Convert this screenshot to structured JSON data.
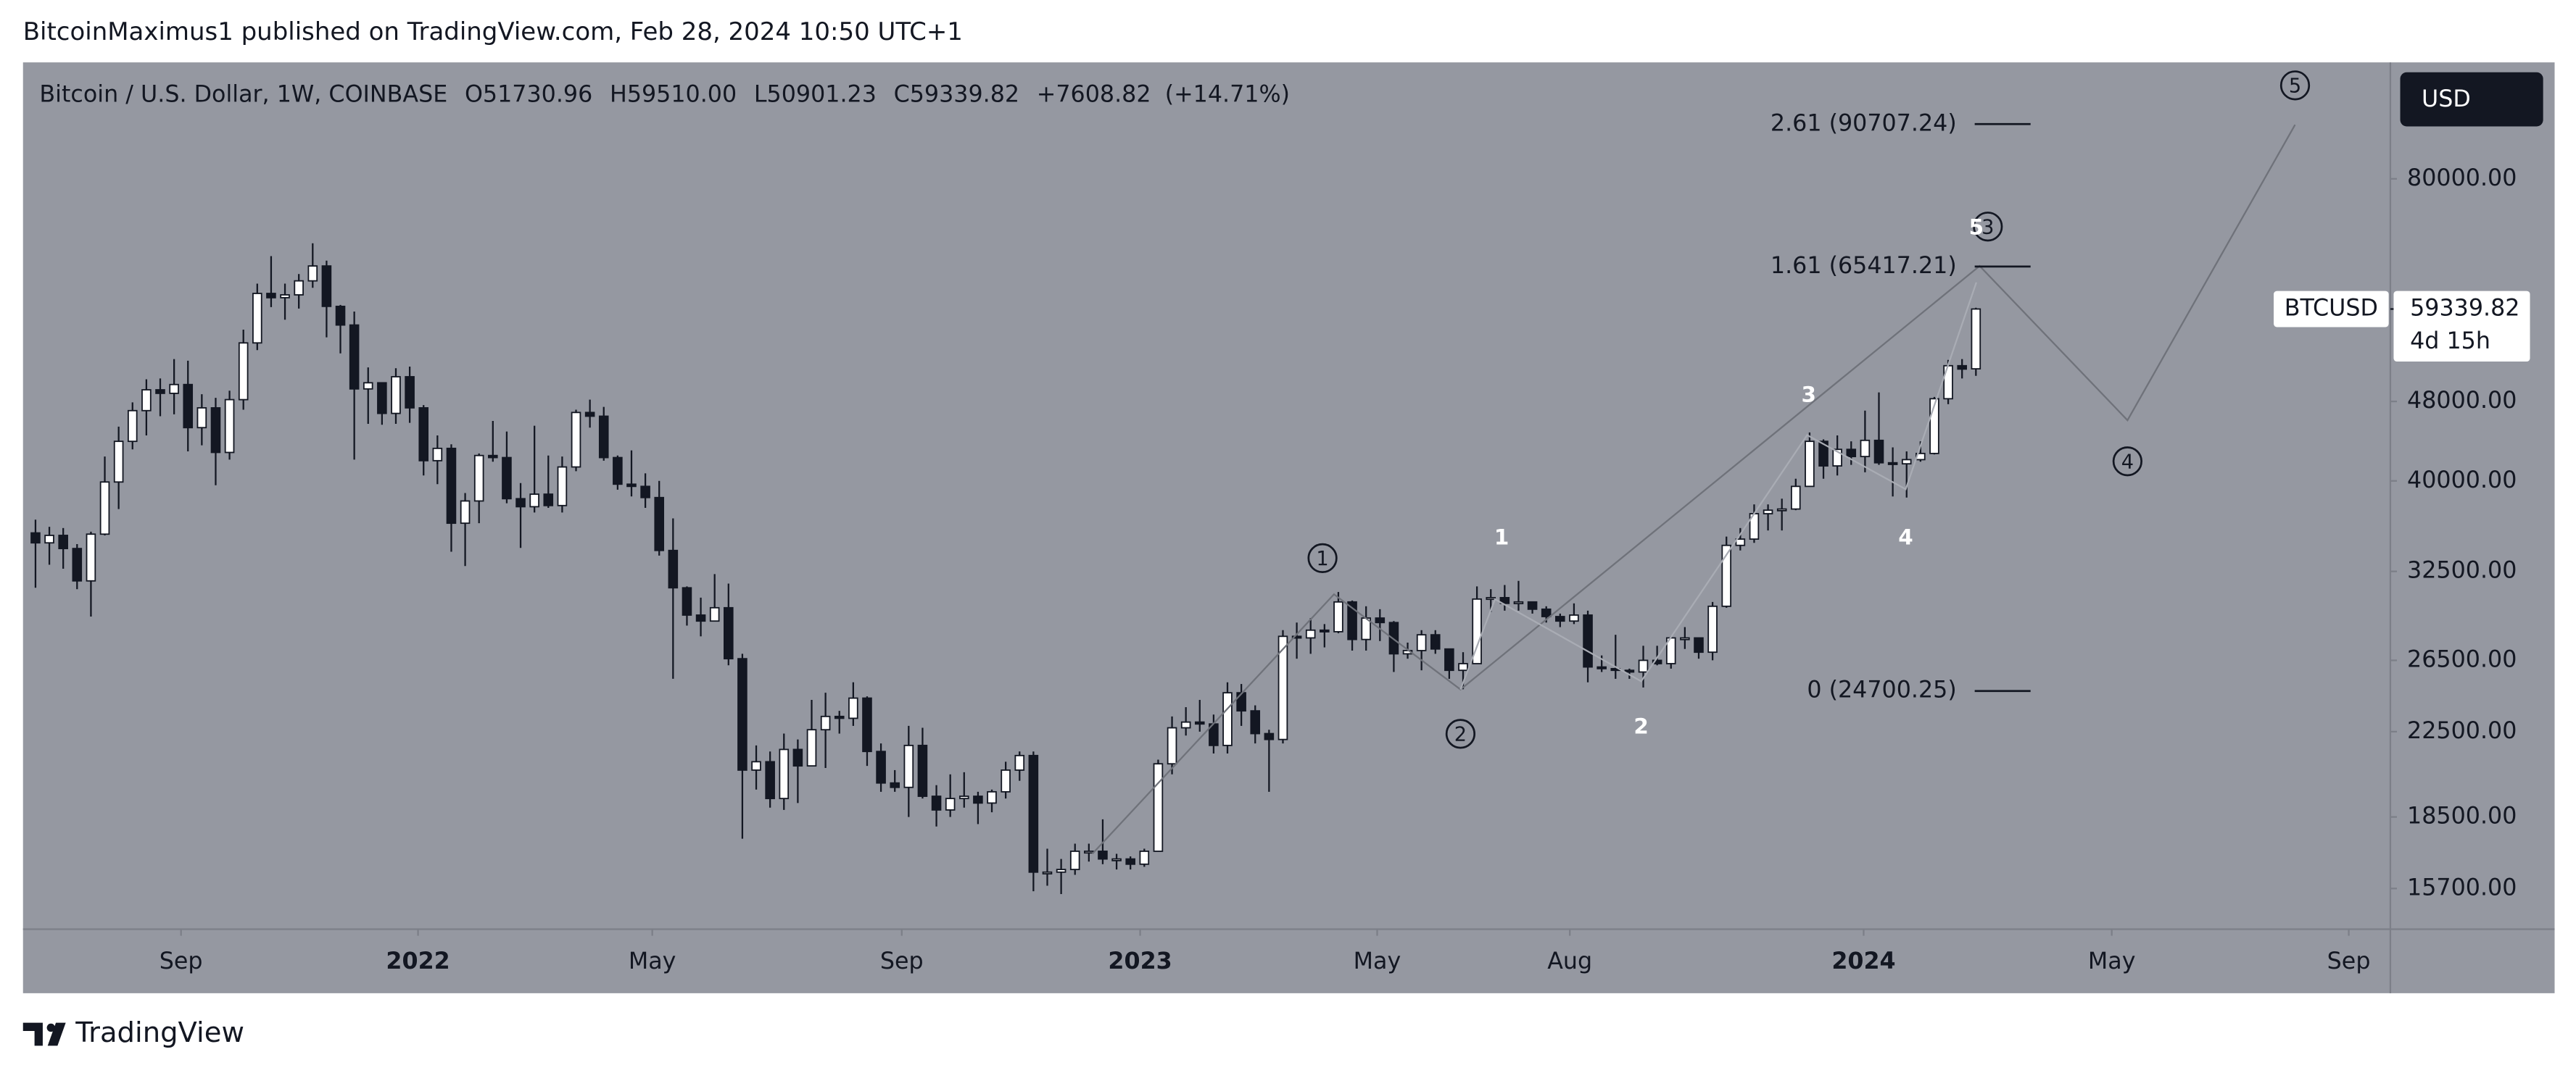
{
  "header": {
    "published": "BitcoinMaximus1 published on TradingView.com, Feb 28, 2024 10:50 UTC+1",
    "footer": "TradingView",
    "currency_button": "USD"
  },
  "chart_data": {
    "type": "candlestick",
    "log_scale": true,
    "legend": {
      "symbol": "Bitcoin / U.S. Dollar, 1W, COINBASE",
      "fields": [
        [
          "O",
          "51730.96"
        ],
        [
          "H",
          "59510.00"
        ],
        [
          "L",
          "50901.23"
        ],
        [
          "C",
          "59339.82"
        ]
      ],
      "change": "+7608.82",
      "change_pct": "(+14.71%)"
    },
    "price_tag": {
      "name": "BTCUSD",
      "value": 59339.82,
      "value_label": "59339.82",
      "countdown": "4d 15h"
    },
    "fib_levels": [
      {
        "label": "2.61 (90707.24)",
        "value": 90707.24
      },
      {
        "label": "1.61 (65417.21)",
        "value": 65417.21
      },
      {
        "label": "0 (24700.25)",
        "value": 24700.25
      }
    ],
    "waves": {
      "major": [
        "1",
        "2",
        "3",
        "4",
        "5"
      ],
      "minor": [
        "1",
        "2",
        "3",
        "4",
        "5"
      ]
    },
    "up_color": "#ffffff",
    "down_color": "#131722",
    "ylim": [
      14300,
      104500
    ],
    "yticks": [
      {
        "value": 80000,
        "label": "80000.00"
      },
      {
        "value": 48000,
        "label": "48000.00"
      },
      {
        "value": 40000,
        "label": "40000.00"
      },
      {
        "value": 32500,
        "label": "32500.00"
      },
      {
        "value": 26500,
        "label": "26500.00"
      },
      {
        "value": 22500,
        "label": "22500.00"
      },
      {
        "value": 18500,
        "label": "18500.00"
      },
      {
        "value": 15700,
        "label": "15700.00"
      }
    ],
    "xlim": [
      -0.9,
      169.9
    ],
    "xticks": [
      {
        "value": 10.5,
        "label": "Sep"
      },
      {
        "value": 27.6,
        "label": "2022"
      },
      {
        "value": 44.5,
        "label": "May"
      },
      {
        "value": 62.5,
        "label": "Sep"
      },
      {
        "value": 79.7,
        "label": "2023"
      },
      {
        "value": 96.8,
        "label": "May"
      },
      {
        "value": 110.7,
        "label": "Aug"
      },
      {
        "value": 131.9,
        "label": "2024"
      },
      {
        "value": 149.8,
        "label": "May"
      },
      {
        "value": 166.9,
        "label": "Sep"
      }
    ],
    "candles": [
      [
        35500,
        36600,
        31300,
        34700
      ],
      [
        34700,
        36000,
        33000,
        35300
      ],
      [
        35300,
        35900,
        32700,
        34250
      ],
      [
        34250,
        34600,
        31200,
        31800
      ],
      [
        31800,
        35600,
        29300,
        35400
      ],
      [
        35400,
        42300,
        35300,
        39900
      ],
      [
        39900,
        45300,
        37500,
        43800
      ],
      [
        43800,
        47900,
        43000,
        47000
      ],
      [
        47000,
        50500,
        44400,
        49300
      ],
      [
        49300,
        50600,
        46400,
        48900
      ],
      [
        48900,
        52900,
        46600,
        49900
      ],
      [
        49900,
        52700,
        42800,
        45200
      ],
      [
        45200,
        48800,
        43400,
        47300
      ],
      [
        47300,
        48400,
        39600,
        42700
      ],
      [
        42700,
        49200,
        42000,
        48200
      ],
      [
        48200,
        56600,
        47100,
        54900
      ],
      [
        54900,
        62900,
        54000,
        61500
      ],
      [
        61500,
        67000,
        59600,
        60900
      ],
      [
        60900,
        62900,
        57900,
        61300
      ],
      [
        61300,
        64300,
        59400,
        63300
      ],
      [
        63300,
        69000,
        62300,
        65500
      ],
      [
        65500,
        66300,
        55600,
        59700
      ],
      [
        59700,
        59900,
        53600,
        57200
      ],
      [
        57200,
        59000,
        42000,
        49400
      ],
      [
        49400,
        51900,
        45600,
        50100
      ],
      [
        50100,
        50100,
        45500,
        46700
      ],
      [
        46700,
        51800,
        45600,
        50800
      ],
      [
        50800,
        52000,
        45700,
        47300
      ],
      [
        47300,
        47600,
        40500,
        41900
      ],
      [
        41900,
        44400,
        39700,
        43100
      ],
      [
        43100,
        43500,
        34000,
        36300
      ],
      [
        36300,
        38900,
        32900,
        38200
      ],
      [
        38200,
        42600,
        36300,
        42400
      ],
      [
        42400,
        45900,
        41800,
        42200
      ],
      [
        42200,
        44800,
        38000,
        38400
      ],
      [
        38400,
        39800,
        34300,
        37700
      ],
      [
        37700,
        45400,
        37200,
        38800
      ],
      [
        38800,
        42400,
        37600,
        37800
      ],
      [
        37800,
        42300,
        37200,
        41300
      ],
      [
        41300,
        47100,
        40900,
        46800
      ],
      [
        46800,
        48200,
        45200,
        46400
      ],
      [
        46400,
        47400,
        41900,
        42200
      ],
      [
        42200,
        42400,
        39200,
        39700
      ],
      [
        39700,
        42900,
        38600,
        39500
      ],
      [
        39500,
        40700,
        37600,
        38500
      ],
      [
        38500,
        40000,
        33700,
        34100
      ],
      [
        34100,
        36700,
        25400,
        31300
      ],
      [
        31300,
        31400,
        28700,
        29400
      ],
      [
        29400,
        30600,
        28000,
        29000
      ],
      [
        29000,
        32300,
        29000,
        29900
      ],
      [
        29900,
        31600,
        26200,
        26600
      ],
      [
        26600,
        26900,
        17600,
        20600
      ],
      [
        20600,
        21800,
        19700,
        21000
      ],
      [
        21000,
        21500,
        18900,
        19300
      ],
      [
        19300,
        22400,
        18800,
        21600
      ],
      [
        21600,
        22100,
        19100,
        20800
      ],
      [
        20800,
        24200,
        20800,
        22600
      ],
      [
        22600,
        24600,
        20700,
        23300
      ],
      [
        23300,
        23600,
        22400,
        23200
      ],
      [
        23200,
        25200,
        22800,
        24300
      ],
      [
        24300,
        24400,
        20800,
        21500
      ],
      [
        21500,
        21900,
        19600,
        20000
      ],
      [
        20000,
        20600,
        19600,
        19800
      ],
      [
        19800,
        22800,
        18500,
        21800
      ],
      [
        21800,
        22700,
        19300,
        19400
      ],
      [
        19400,
        19900,
        18100,
        18800
      ],
      [
        18800,
        20400,
        18500,
        19300
      ],
      [
        19300,
        20500,
        18900,
        19400
      ],
      [
        19400,
        19600,
        18200,
        19100
      ],
      [
        19100,
        19700,
        18700,
        19600
      ],
      [
        19600,
        21000,
        19300,
        20600
      ],
      [
        20600,
        21500,
        20100,
        21300
      ],
      [
        21300,
        21500,
        15600,
        16300
      ],
      [
        16300,
        17200,
        15800,
        16300
      ],
      [
        16300,
        16800,
        15500,
        16400
      ],
      [
        16400,
        17400,
        16200,
        17100
      ],
      [
        17100,
        17400,
        16700,
        17100
      ],
      [
        17100,
        18400,
        16600,
        16800
      ],
      [
        16800,
        17000,
        16400,
        16800
      ],
      [
        16800,
        16900,
        16400,
        16600
      ],
      [
        16600,
        17200,
        16500,
        17100
      ],
      [
        17100,
        21100,
        17100,
        20900
      ],
      [
        20900,
        23300,
        20400,
        22700
      ],
      [
        22700,
        23800,
        22300,
        23000
      ],
      [
        23000,
        24200,
        22500,
        22900
      ],
      [
        22900,
        23400,
        21400,
        21800
      ],
      [
        21800,
        25200,
        21400,
        24600
      ],
      [
        24600,
        25100,
        22800,
        23600
      ],
      [
        23600,
        23900,
        21900,
        22400
      ],
      [
        22400,
        22600,
        19600,
        22100
      ],
      [
        22100,
        28400,
        21900,
        28000
      ],
      [
        28000,
        28900,
        26600,
        27900
      ],
      [
        27900,
        29200,
        26900,
        28400
      ],
      [
        28400,
        28800,
        27300,
        28300
      ],
      [
        28300,
        31000,
        28200,
        30300
      ],
      [
        30300,
        30400,
        27100,
        27800
      ],
      [
        27800,
        30000,
        27100,
        29200
      ],
      [
        29200,
        29800,
        27700,
        28900
      ],
      [
        28900,
        29000,
        25800,
        26900
      ],
      [
        26900,
        27600,
        26600,
        27100
      ],
      [
        27100,
        28400,
        25900,
        28100
      ],
      [
        28100,
        28400,
        26900,
        27200
      ],
      [
        27200,
        27200,
        25400,
        25900
      ],
      [
        25900,
        27000,
        24800,
        26300
      ],
      [
        26300,
        31400,
        26300,
        30500
      ],
      [
        30500,
        31200,
        29600,
        30600
      ],
      [
        30600,
        31500,
        29700,
        30200
      ],
      [
        30200,
        31800,
        29700,
        30300
      ],
      [
        30300,
        30300,
        29500,
        29800
      ],
      [
        29800,
        30000,
        28900,
        29300
      ],
      [
        29300,
        29500,
        28600,
        29000
      ],
      [
        29000,
        30200,
        28800,
        29400
      ],
      [
        29400,
        29700,
        25200,
        26100
      ],
      [
        26100,
        26800,
        25800,
        26000
      ],
      [
        26000,
        28100,
        25400,
        25900
      ],
      [
        25900,
        26000,
        25400,
        25800
      ],
      [
        25800,
        27400,
        24900,
        26500
      ],
      [
        26500,
        27400,
        26200,
        26300
      ],
      [
        26300,
        28000,
        26000,
        27900
      ],
      [
        27900,
        28600,
        27200,
        27900
      ],
      [
        27900,
        27900,
        26600,
        27000
      ],
      [
        27000,
        30300,
        26500,
        30000
      ],
      [
        30000,
        35200,
        29900,
        34500
      ],
      [
        34500,
        35900,
        34100,
        35000
      ],
      [
        35000,
        37900,
        34700,
        37100
      ],
      [
        37100,
        37900,
        35700,
        37400
      ],
      [
        37400,
        38400,
        35700,
        37500
      ],
      [
        37500,
        40200,
        37400,
        39500
      ],
      [
        39500,
        44700,
        39500,
        43800
      ],
      [
        43800,
        44000,
        40200,
        41400
      ],
      [
        41400,
        44400,
        40500,
        43000
      ],
      [
        43000,
        43800,
        41500,
        42300
      ],
      [
        42300,
        47000,
        40800,
        43900
      ],
      [
        43900,
        49000,
        41500,
        41700
      ],
      [
        41700,
        43200,
        38600,
        41600
      ],
      [
        41600,
        42800,
        38500,
        42000
      ],
      [
        42000,
        43800,
        41800,
        42600
      ],
      [
        42600,
        48500,
        42500,
        48300
      ],
      [
        48300,
        52800,
        47700,
        52100
      ],
      [
        52100,
        52900,
        50600,
        51700
      ],
      [
        51730.96,
        59510,
        50901.23,
        59339.82
      ]
    ]
  }
}
